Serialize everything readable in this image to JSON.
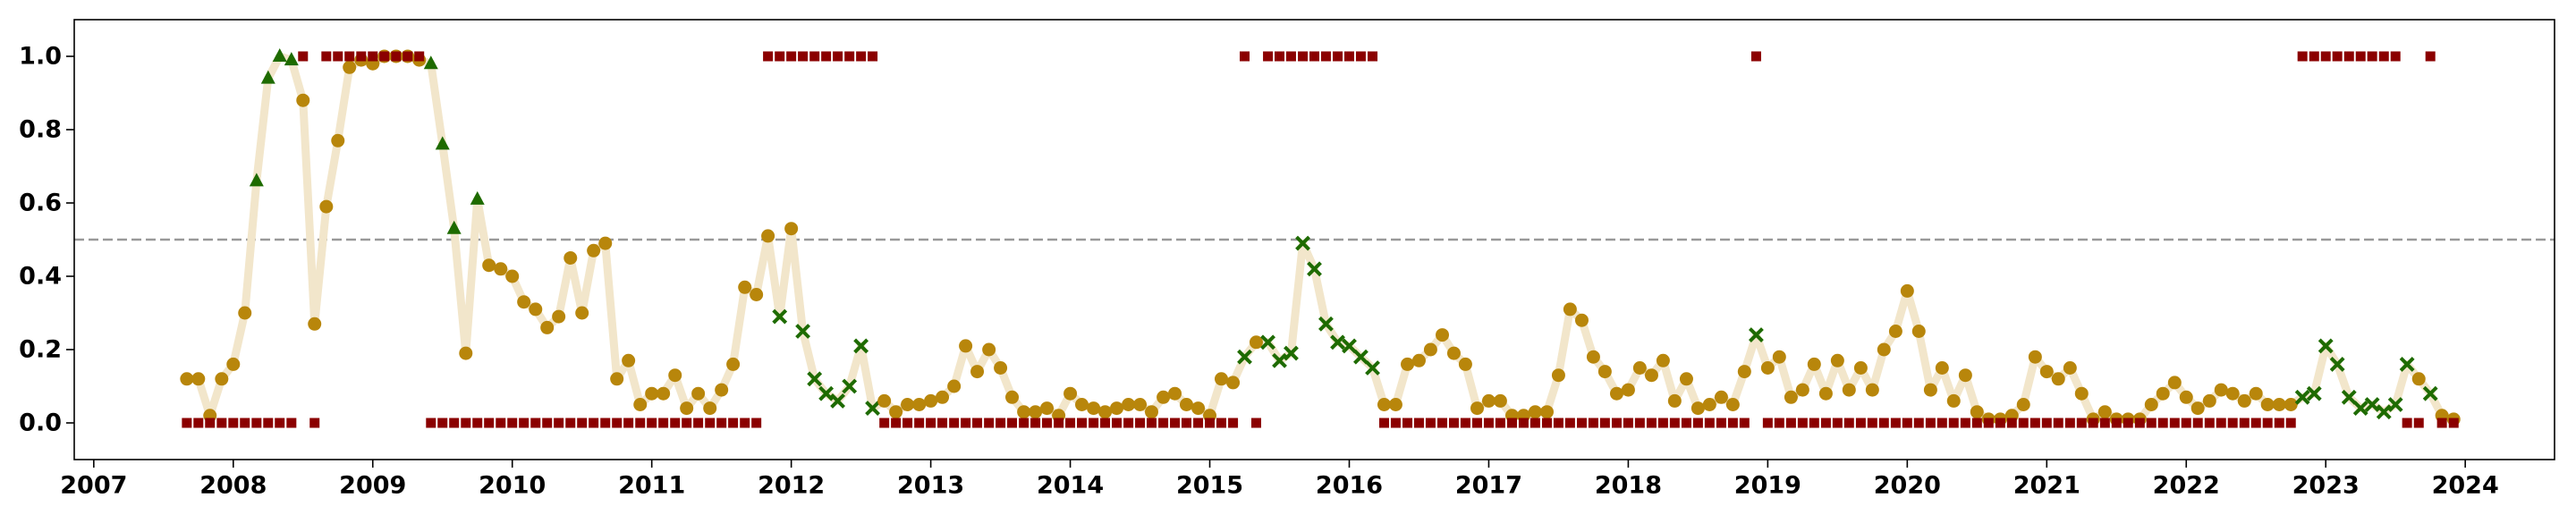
{
  "chart_data": {
    "type": "line",
    "x": [
      2007.667,
      2007.75,
      2007.833,
      2007.917,
      2008,
      2008.083,
      2008.167,
      2008.25,
      2008.333,
      2008.417,
      2008.5,
      2008.583,
      2008.667,
      2008.75,
      2008.833,
      2008.917,
      2009,
      2009.083,
      2009.167,
      2009.25,
      2009.333,
      2009.417,
      2009.5,
      2009.583,
      2009.667,
      2009.75,
      2009.833,
      2009.917,
      2010,
      2010.083,
      2010.167,
      2010.25,
      2010.333,
      2010.417,
      2010.5,
      2010.583,
      2010.667,
      2010.75,
      2010.833,
      2010.917,
      2011,
      2011.083,
      2011.167,
      2011.25,
      2011.333,
      2011.417,
      2011.5,
      2011.583,
      2011.667,
      2011.75,
      2011.833,
      2011.917,
      2012,
      2012.083,
      2012.167,
      2012.25,
      2012.333,
      2012.417,
      2012.5,
      2012.583,
      2012.667,
      2012.75,
      2012.833,
      2012.917,
      2013,
      2013.083,
      2013.167,
      2013.25,
      2013.333,
      2013.417,
      2013.5,
      2013.583,
      2013.667,
      2013.75,
      2013.833,
      2013.917,
      2014,
      2014.083,
      2014.167,
      2014.25,
      2014.333,
      2014.417,
      2014.5,
      2014.583,
      2014.667,
      2014.75,
      2014.833,
      2014.917,
      2015,
      2015.083,
      2015.167,
      2015.25,
      2015.333,
      2015.417,
      2015.5,
      2015.583,
      2015.667,
      2015.75,
      2015.833,
      2015.917,
      2016,
      2016.083,
      2016.167,
      2016.25,
      2016.333,
      2016.417,
      2016.5,
      2016.583,
      2016.667,
      2016.75,
      2016.833,
      2016.917,
      2017,
      2017.083,
      2017.167,
      2017.25,
      2017.333,
      2017.417,
      2017.5,
      2017.583,
      2017.667,
      2017.75,
      2017.833,
      2017.917,
      2018,
      2018.083,
      2018.167,
      2018.25,
      2018.333,
      2018.417,
      2018.5,
      2018.583,
      2018.667,
      2018.75,
      2018.833,
      2018.917,
      2019,
      2019.083,
      2019.167,
      2019.25,
      2019.333,
      2019.417,
      2019.5,
      2019.583,
      2019.667,
      2019.75,
      2019.833,
      2019.917,
      2020,
      2020.083,
      2020.167,
      2020.25,
      2020.333,
      2020.417,
      2020.5,
      2020.583,
      2020.667,
      2020.75,
      2020.833,
      2020.917,
      2021,
      2021.083,
      2021.167,
      2021.25,
      2021.333,
      2021.417,
      2021.5,
      2021.583,
      2021.667,
      2021.75,
      2021.833,
      2021.917,
      2022,
      2022.083,
      2022.167,
      2022.25,
      2022.333,
      2022.417,
      2022.5,
      2022.583,
      2022.667,
      2022.75,
      2022.833,
      2022.917,
      2023,
      2023.083,
      2023.167,
      2023.25,
      2023.333,
      2023.417,
      2023.5,
      2023.583,
      2023.667,
      2023.75,
      2023.833,
      2023.917
    ],
    "series": [
      {
        "line_color": "#f2e6cb",
        "marker_colors": {
          "o": "#b8860b",
          "^": "#1e6b00",
          "x": "#1e6b00"
        },
        "values": [
          0.12,
          0.12,
          0.02,
          0.12,
          0.16,
          0.3,
          0.66,
          0.94,
          1.0,
          0.99,
          0.88,
          0.27,
          0.59,
          0.77,
          0.97,
          0.99,
          0.98,
          1.0,
          1.0,
          1.0,
          0.99,
          0.98,
          0.76,
          0.53,
          0.19,
          0.61,
          0.43,
          0.42,
          0.4,
          0.33,
          0.31,
          0.26,
          0.29,
          0.45,
          0.3,
          0.47,
          0.49,
          0.12,
          0.17,
          0.05,
          0.08,
          0.08,
          0.13,
          0.04,
          0.08,
          0.04,
          0.09,
          0.16,
          0.37,
          0.35,
          0.51,
          0.29,
          0.53,
          0.25,
          0.12,
          0.08,
          0.06,
          0.1,
          0.21,
          0.04,
          0.06,
          0.03,
          0.05,
          0.05,
          0.06,
          0.07,
          0.1,
          0.21,
          0.14,
          0.2,
          0.15,
          0.07,
          0.03,
          0.03,
          0.04,
          0.02,
          0.08,
          0.05,
          0.04,
          0.03,
          0.04,
          0.05,
          0.05,
          0.03,
          0.07,
          0.08,
          0.05,
          0.04,
          0.02,
          0.12,
          0.11,
          0.18,
          0.22,
          0.22,
          0.17,
          0.19,
          0.49,
          0.42,
          0.27,
          0.22,
          0.21,
          0.18,
          0.15,
          0.05,
          0.05,
          0.16,
          0.17,
          0.2,
          0.24,
          0.19,
          0.16,
          0.04,
          0.06,
          0.06,
          0.02,
          0.02,
          0.03,
          0.03,
          0.13,
          0.31,
          0.28,
          0.18,
          0.14,
          0.08,
          0.09,
          0.15,
          0.13,
          0.17,
          0.06,
          0.12,
          0.04,
          0.05,
          0.07,
          0.05,
          0.14,
          0.24,
          0.15,
          0.18,
          0.07,
          0.09,
          0.16,
          0.08,
          0.17,
          0.09,
          0.15,
          0.09,
          0.2,
          0.25,
          0.36,
          0.25,
          0.09,
          0.15,
          0.06,
          0.13,
          0.03,
          0.01,
          0.01,
          0.02,
          0.05,
          0.18,
          0.14,
          0.12,
          0.15,
          0.08,
          0.01,
          0.03,
          0.01,
          0.01,
          0.01,
          0.05,
          0.08,
          0.11,
          0.07,
          0.04,
          0.06,
          0.09,
          0.08,
          0.06,
          0.08,
          0.05,
          0.05,
          0.05,
          0.07,
          0.08,
          0.21,
          0.16,
          0.07,
          0.04,
          0.05,
          0.03,
          0.05,
          0.16,
          0.12,
          0.08,
          0.02,
          0.01
        ],
        "markers": [
          "o",
          "o",
          "o",
          "o",
          "o",
          "o",
          "^",
          "^",
          "^",
          "^",
          "o",
          "o",
          "o",
          "o",
          "o",
          "o",
          "o",
          "o",
          "o",
          "o",
          "o",
          "^",
          "^",
          "^",
          "o",
          "^",
          "o",
          "o",
          "o",
          "o",
          "o",
          "o",
          "o",
          "o",
          "o",
          "o",
          "o",
          "o",
          "o",
          "o",
          "o",
          "o",
          "o",
          "o",
          "o",
          "o",
          "o",
          "o",
          "o",
          "o",
          "o",
          "x",
          "o",
          "x",
          "x",
          "x",
          "x",
          "x",
          "x",
          "x",
          "o",
          "o",
          "o",
          "o",
          "o",
          "o",
          "o",
          "o",
          "o",
          "o",
          "o",
          "o",
          "o",
          "o",
          "o",
          "o",
          "o",
          "o",
          "o",
          "o",
          "o",
          "o",
          "o",
          "o",
          "o",
          "o",
          "o",
          "o",
          "o",
          "o",
          "o",
          "x",
          "o",
          "x",
          "x",
          "x",
          "x",
          "x",
          "x",
          "x",
          "x",
          "x",
          "x",
          "o",
          "o",
          "o",
          "o",
          "o",
          "o",
          "o",
          "o",
          "o",
          "o",
          "o",
          "o",
          "o",
          "o",
          "o",
          "o",
          "o",
          "o",
          "o",
          "o",
          "o",
          "o",
          "o",
          "o",
          "o",
          "o",
          "o",
          "o",
          "o",
          "o",
          "o",
          "o",
          "x",
          "o",
          "o",
          "o",
          "o",
          "o",
          "o",
          "o",
          "o",
          "o",
          "o",
          "o",
          "o",
          "o",
          "o",
          "o",
          "o",
          "o",
          "o",
          "o",
          "o",
          "o",
          "o",
          "o",
          "o",
          "o",
          "o",
          "o",
          "o",
          "o",
          "o",
          "o",
          "o",
          "o",
          "o",
          "o",
          "o",
          "o",
          "o",
          "o",
          "o",
          "o",
          "o",
          "o",
          "o",
          "o",
          "o",
          "x",
          "x",
          "x",
          "x",
          "x",
          "x",
          "x",
          "x",
          "x",
          "x",
          "o",
          "x",
          "o",
          "o"
        ]
      },
      {
        "marker": "s",
        "color": "#8b0000",
        "values": [
          0,
          0,
          0,
          0,
          0,
          0,
          0,
          0,
          0,
          0,
          1,
          0,
          1,
          1,
          1,
          1,
          1,
          1,
          1,
          1,
          1,
          0,
          0,
          0,
          0,
          0,
          0,
          0,
          0,
          0,
          0,
          0,
          0,
          0,
          0,
          0,
          0,
          0,
          0,
          0,
          0,
          0,
          0,
          0,
          0,
          0,
          0,
          0,
          0,
          0,
          1,
          1,
          1,
          1,
          1,
          1,
          1,
          1,
          1,
          1,
          0,
          0,
          0,
          0,
          0,
          0,
          0,
          0,
          0,
          0,
          0,
          0,
          0,
          0,
          0,
          0,
          0,
          0,
          0,
          0,
          0,
          0,
          0,
          0,
          0,
          0,
          0,
          0,
          0,
          0,
          0,
          1,
          0,
          1,
          1,
          1,
          1,
          1,
          1,
          1,
          1,
          1,
          1,
          0,
          0,
          0,
          0,
          0,
          0,
          0,
          0,
          0,
          0,
          0,
          0,
          0,
          0,
          0,
          0,
          0,
          0,
          0,
          0,
          0,
          0,
          0,
          0,
          0,
          0,
          0,
          0,
          0,
          0,
          0,
          0,
          1,
          0,
          0,
          0,
          0,
          0,
          0,
          0,
          0,
          0,
          0,
          0,
          0,
          0,
          0,
          0,
          0,
          0,
          0,
          0,
          0,
          0,
          0,
          0,
          0,
          0,
          0,
          0,
          0,
          0,
          0,
          0,
          0,
          0,
          0,
          0,
          0,
          0,
          0,
          0,
          0,
          0,
          0,
          0,
          0,
          0,
          0,
          1,
          1,
          1,
          1,
          1,
          1,
          1,
          1,
          1,
          0,
          0,
          1,
          0,
          0
        ]
      }
    ],
    "threshold": 0.5,
    "threshold_color": "#999999",
    "xlim": [
      2006.86,
      2024.64
    ],
    "ylim": [
      -0.1,
      1.1
    ],
    "xticks": [
      2007,
      2008,
      2009,
      2010,
      2011,
      2012,
      2013,
      2014,
      2015,
      2016,
      2017,
      2018,
      2019,
      2020,
      2021,
      2022,
      2023,
      2024
    ],
    "yticks": [
      {
        "value": 0,
        "label": "0.0"
      },
      {
        "value": 0.2,
        "label": "0.2"
      },
      {
        "value": 0.4,
        "label": "0.4"
      },
      {
        "value": 0.6,
        "label": "0.6"
      },
      {
        "value": 0.8,
        "label": "0.8"
      },
      {
        "value": 1,
        "label": "1.0"
      }
    ]
  }
}
